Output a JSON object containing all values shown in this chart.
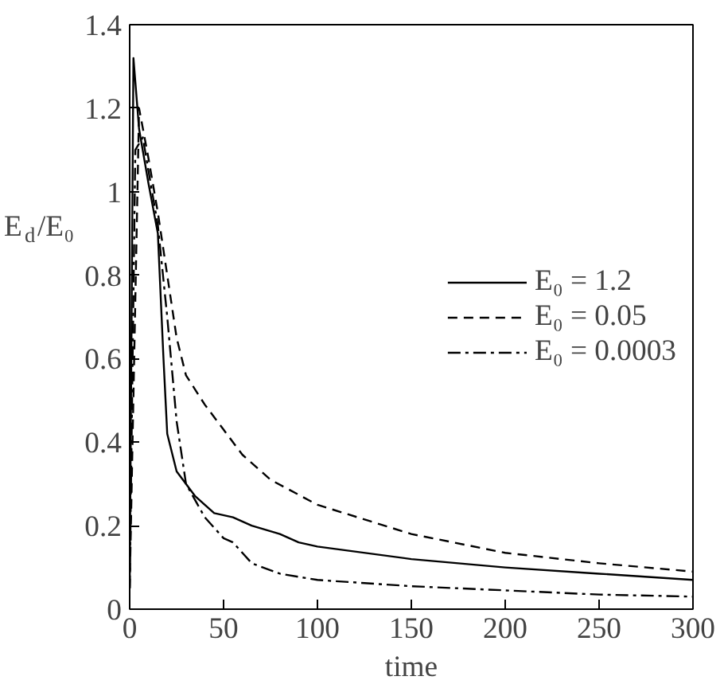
{
  "chart_data": {
    "type": "line",
    "xlabel": "time",
    "ylabel": "E$_{d}$/E₀",
    "xlim": [
      0,
      300
    ],
    "ylim": [
      0,
      1.4
    ],
    "xticks": [
      0,
      50,
      100,
      150,
      200,
      250,
      300
    ],
    "yticks": [
      0,
      0.2,
      0.4,
      0.6,
      0.8,
      1,
      1.2,
      1.4
    ],
    "grid": false,
    "legend": "right",
    "color": "#000000",
    "series": [
      {
        "name": "E₀ = 1.2",
        "line_style": "solid",
        "x": [
          0,
          2,
          5,
          10,
          15,
          18,
          20,
          25,
          35,
          45,
          55,
          65,
          80,
          90,
          100,
          150,
          200,
          250,
          300
        ],
        "values": [
          0.05,
          1.32,
          1.15,
          1.02,
          0.9,
          0.6,
          0.42,
          0.33,
          0.27,
          0.23,
          0.22,
          0.2,
          0.18,
          0.16,
          0.15,
          0.12,
          0.1,
          0.085,
          0.07
        ]
      },
      {
        "name": "E₀ = 0.05",
        "line_style": "dashed",
        "x": [
          0,
          5,
          10,
          15,
          20,
          25,
          30,
          40,
          50,
          60,
          75,
          100,
          150,
          200,
          250,
          300
        ],
        "values": [
          0.05,
          1.2,
          1.08,
          0.95,
          0.8,
          0.65,
          0.56,
          0.49,
          0.43,
          0.37,
          0.31,
          0.25,
          0.18,
          0.135,
          0.11,
          0.09
        ]
      },
      {
        "name": "E₀ = 0.0003",
        "line_style": "dashdot",
        "x": [
          0,
          3,
          7,
          10,
          15,
          20,
          25,
          30,
          40,
          50,
          55,
          65,
          80,
          100,
          150,
          200,
          250,
          300
        ],
        "values": [
          0.05,
          1.1,
          1.13,
          1.05,
          0.92,
          0.7,
          0.45,
          0.3,
          0.22,
          0.17,
          0.16,
          0.11,
          0.085,
          0.07,
          0.055,
          0.045,
          0.035,
          0.03
        ]
      }
    ]
  }
}
